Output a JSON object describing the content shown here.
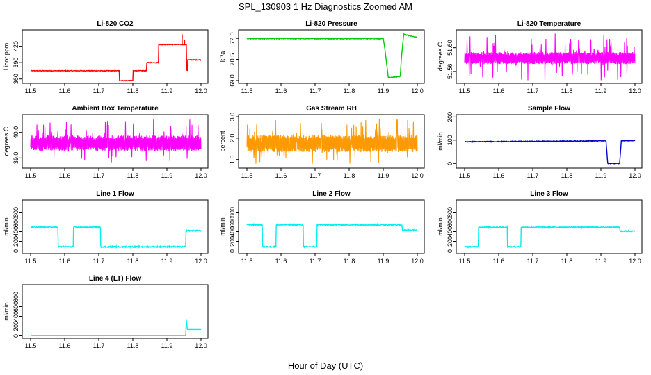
{
  "figure": {
    "title": "SPL_130903 1 Hz Diagnostics Zoomed AM",
    "xlabel": "Hour of Day (UTC)"
  },
  "chart_data": [
    {
      "type": "line",
      "title": "Li-820 CO2",
      "ylabel": "Licor ppm",
      "color": "#ff0000",
      "xlim": [
        11.5,
        12.0
      ],
      "xticks": [
        "11.5",
        "11.6",
        "11.7",
        "11.8",
        "11.9",
        "12.0"
      ],
      "ylim": [
        352,
        450
      ],
      "yticks": [
        360,
        390,
        420
      ],
      "ytick_labels": [
        "360",
        "390",
        "420"
      ],
      "noise": 0.6,
      "points": [
        [
          11.5,
          375
        ],
        [
          11.76,
          375
        ],
        [
          11.76,
          357
        ],
        [
          11.8,
          357
        ],
        [
          11.8,
          375
        ],
        [
          11.84,
          375
        ],
        [
          11.84,
          390
        ],
        [
          11.875,
          390
        ],
        [
          11.875,
          423
        ],
        [
          11.957,
          423
        ],
        [
          11.957,
          376
        ],
        [
          11.96,
          376
        ],
        [
          11.96,
          395
        ],
        [
          12.0,
          395
        ]
      ],
      "spikes": [
        [
          11.945,
          442
        ],
        [
          11.952,
          432
        ]
      ]
    },
    {
      "type": "line",
      "title": "Li-820 Pressure",
      "ylabel": "kPa",
      "color": "#00cc00",
      "xlim": [
        11.5,
        12.0
      ],
      "xticks": [
        "11.5",
        "11.6",
        "11.7",
        "11.8",
        "11.9",
        "12.0"
      ],
      "ylim": [
        68.8,
        72.6
      ],
      "yticks": [
        69.0,
        70.5,
        72.0
      ],
      "ytick_labels": [
        "69.0",
        "70.5",
        "72.0"
      ],
      "noise": 0.03,
      "points": [
        [
          11.5,
          71.98
        ],
        [
          11.9,
          71.98
        ],
        [
          11.905,
          71.2
        ],
        [
          11.915,
          69.2
        ],
        [
          11.95,
          69.3
        ],
        [
          11.953,
          70.5
        ],
        [
          11.96,
          72.3
        ],
        [
          11.975,
          72.2
        ],
        [
          12.0,
          72.05
        ]
      ]
    },
    {
      "type": "noise",
      "title": "Li-820 Temperature",
      "ylabel": "degrees.C",
      "color": "#ff00ff",
      "xlim": [
        11.5,
        12.0
      ],
      "xticks": [
        "11.5",
        "11.6",
        "11.7",
        "11.8",
        "11.9",
        "12.0"
      ],
      "ylim": [
        51.54,
        51.63
      ],
      "yticks": [
        51.56,
        51.6
      ],
      "ytick_labels": [
        "51.56",
        "51.60"
      ],
      "levels": [
        51.575,
        51.59
      ],
      "band": [
        51.545,
        51.625
      ]
    },
    {
      "type": "noise",
      "title": "Ambient Box Temperature",
      "ylabel": "degrees.C",
      "color": "#ff00ff",
      "xlim": [
        11.5,
        12.0
      ],
      "xticks": [
        "11.5",
        "11.6",
        "11.7",
        "11.8",
        "11.9",
        "12.0"
      ],
      "ylim": [
        38.6,
        40.7
      ],
      "yticks": [
        39.0,
        40.0
      ],
      "ytick_labels": [
        "39.0",
        "40.0"
      ],
      "levels": [
        39.35,
        39.8
      ],
      "band": [
        38.8,
        40.55
      ]
    },
    {
      "type": "noise",
      "title": "Gas Stream RH",
      "ylabel": "percent",
      "color": "#ff9900",
      "xlim": [
        11.5,
        12.0
      ],
      "xticks": [
        "11.5",
        "11.6",
        "11.7",
        "11.8",
        "11.9",
        "12.0"
      ],
      "ylim": [
        0.6,
        3.1
      ],
      "yticks": [
        1.0,
        2.0,
        3.0
      ],
      "ytick_labels": [
        "1.0",
        "2.0",
        "3.0"
      ],
      "levels": [
        1.45,
        2.05
      ],
      "band": [
        0.8,
        2.9
      ]
    },
    {
      "type": "line",
      "title": "Sample Flow",
      "ylabel": "ml/min",
      "color": "#0000cc",
      "xlim": [
        11.5,
        12.0
      ],
      "xticks": [
        "11.5",
        "11.6",
        "11.7",
        "11.8",
        "11.9",
        "12.0"
      ],
      "ylim": [
        -20,
        210
      ],
      "yticks": [
        0,
        100,
        200
      ],
      "ytick_labels": [
        "0",
        "100",
        "200"
      ],
      "noise": 1.5,
      "points": [
        [
          11.5,
          93
        ],
        [
          11.915,
          97
        ],
        [
          11.92,
          0
        ],
        [
          11.955,
          0
        ],
        [
          11.96,
          98
        ],
        [
          12.0,
          98
        ]
      ]
    },
    {
      "type": "line",
      "title": "Line 1 Flow",
      "ylabel": "ml/min",
      "color": "#00eeee",
      "xlim": [
        11.5,
        12.0
      ],
      "xticks": [
        "11.5",
        "11.6",
        "11.7",
        "11.8",
        "11.9",
        "12.0"
      ],
      "ylim": [
        -50,
        1050
      ],
      "yticks": [
        0,
        200,
        400,
        600,
        800
      ],
      "ytick_labels": [
        "0",
        "200",
        "400",
        "600",
        "800"
      ],
      "noise": 12,
      "points": [
        [
          11.5,
          490
        ],
        [
          11.58,
          490
        ],
        [
          11.58,
          90
        ],
        [
          11.625,
          90
        ],
        [
          11.625,
          490
        ],
        [
          11.705,
          490
        ],
        [
          11.705,
          90
        ],
        [
          11.955,
          90
        ],
        [
          11.955,
          420
        ],
        [
          12.0,
          420
        ]
      ]
    },
    {
      "type": "line",
      "title": "Line 2 Flow",
      "ylabel": "ml/min",
      "color": "#00eeee",
      "xlim": [
        11.5,
        12.0
      ],
      "xticks": [
        "11.5",
        "11.6",
        "11.7",
        "11.8",
        "11.9",
        "12.0"
      ],
      "ylim": [
        -50,
        1050
      ],
      "yticks": [
        0,
        200,
        400,
        600,
        800
      ],
      "ytick_labels": [
        "0",
        "200",
        "400",
        "600",
        "800"
      ],
      "noise": 12,
      "points": [
        [
          11.5,
          540
        ],
        [
          11.545,
          540
        ],
        [
          11.545,
          90
        ],
        [
          11.585,
          90
        ],
        [
          11.585,
          540
        ],
        [
          11.665,
          540
        ],
        [
          11.665,
          90
        ],
        [
          11.705,
          90
        ],
        [
          11.705,
          540
        ],
        [
          11.955,
          540
        ],
        [
          11.955,
          430
        ],
        [
          12.0,
          430
        ]
      ]
    },
    {
      "type": "line",
      "title": "Line 3 Flow",
      "ylabel": "ml/min",
      "color": "#00eeee",
      "xlim": [
        11.5,
        12.0
      ],
      "xticks": [
        "11.5",
        "11.6",
        "11.7",
        "11.8",
        "11.9",
        "12.0"
      ],
      "ylim": [
        -50,
        1050
      ],
      "yticks": [
        0,
        200,
        400,
        600,
        800
      ],
      "ytick_labels": [
        "0",
        "200",
        "400",
        "600",
        "800"
      ],
      "noise": 12,
      "points": [
        [
          11.5,
          90
        ],
        [
          11.54,
          90
        ],
        [
          11.54,
          490
        ],
        [
          11.625,
          490
        ],
        [
          11.625,
          90
        ],
        [
          11.665,
          90
        ],
        [
          11.665,
          490
        ],
        [
          11.955,
          490
        ],
        [
          11.955,
          410
        ],
        [
          12.0,
          410
        ]
      ]
    },
    {
      "type": "line",
      "title": "Line 4 (LT) Flow",
      "ylabel": "ml/min",
      "color": "#00eeee",
      "xlim": [
        11.5,
        12.0
      ],
      "xticks": [
        "11.5",
        "11.6",
        "11.7",
        "11.8",
        "11.9",
        "12.0"
      ],
      "ylim": [
        -50,
        1050
      ],
      "yticks": [
        0,
        200,
        400,
        600,
        800
      ],
      "ytick_labels": [
        "0",
        "200",
        "400",
        "600",
        "800"
      ],
      "noise": 0,
      "points": [
        [
          11.5,
          5
        ],
        [
          11.955,
          5
        ],
        [
          11.957,
          330
        ],
        [
          11.96,
          130
        ],
        [
          12.0,
          130
        ]
      ]
    }
  ]
}
